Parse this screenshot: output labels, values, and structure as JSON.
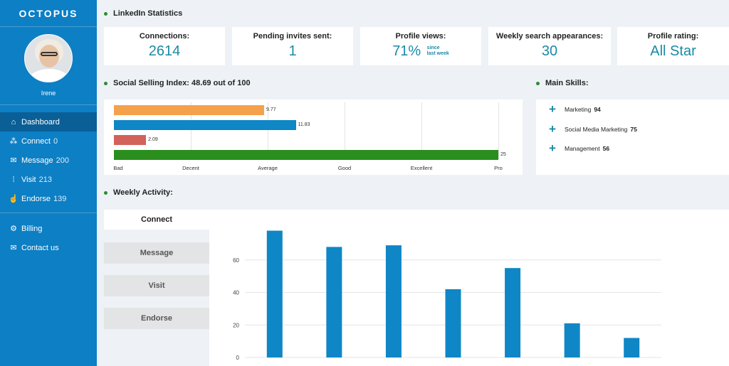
{
  "sidebar": {
    "logo": "OCTOPUS",
    "user_name": "Irene",
    "items": [
      {
        "label": "Dashboard",
        "count": "",
        "icon": "home-icon"
      },
      {
        "label": "Connect",
        "count": "0",
        "icon": "share-icon"
      },
      {
        "label": "Message",
        "count": "200",
        "icon": "envelope-icon"
      },
      {
        "label": "Visit",
        "count": "213",
        "icon": "footprints-icon"
      },
      {
        "label": "Endorse",
        "count": "139",
        "icon": "user-thumb-icon"
      }
    ],
    "footer_items": [
      {
        "label": "Billing",
        "icon": "gears-icon"
      },
      {
        "label": "Contact us",
        "icon": "envelope-icon"
      }
    ],
    "colors": {
      "bg": "#0d7fc4",
      "active": "#0a5f96"
    }
  },
  "stats": {
    "title": "LinkedIn Statistics",
    "cards": [
      {
        "label": "Connections:",
        "value": "2614"
      },
      {
        "label": "Pending invites sent:",
        "value": "1"
      },
      {
        "label": "Profile views:",
        "value": "71%",
        "sub1": "since",
        "sub2": "last week"
      },
      {
        "label": "Weekly search appearances:",
        "value": "30"
      },
      {
        "label": "Profile rating:",
        "value": "All Star"
      }
    ]
  },
  "ssi": {
    "title": "Social Selling Index: 48.69 out of 100",
    "axis_labels": [
      "Bad",
      "Decent",
      "Average",
      "Good",
      "Excellent",
      "Pro"
    ],
    "bars": [
      {
        "value": 9.77,
        "label": "9.77",
        "color": "#f5a04a"
      },
      {
        "value": 11.83,
        "label": "11.83",
        "color": "#0f86c6"
      },
      {
        "value": 2.09,
        "label": "2.09",
        "color": "#d2625a"
      },
      {
        "value": 25,
        "label": "25",
        "color": "#2a8e1e"
      }
    ],
    "max": 25
  },
  "skills": {
    "title": "Main Skills:",
    "items": [
      {
        "name": "Marketing",
        "count": "94"
      },
      {
        "name": "Social Media Marketing",
        "count": "75"
      },
      {
        "name": "Management",
        "count": "56"
      }
    ]
  },
  "weekly": {
    "title": "Weekly Activity:",
    "tabs": [
      "Connect",
      "Message",
      "Visit",
      "Endorse"
    ],
    "active_tab": "Connect"
  },
  "chart_data": {
    "type": "bar",
    "values": [
      78,
      68,
      69,
      42,
      55,
      21,
      12
    ],
    "yticks": [
      0,
      20,
      40,
      60
    ],
    "ylim": [
      0,
      80
    ],
    "color": "#0f86c6",
    "grid": true
  }
}
